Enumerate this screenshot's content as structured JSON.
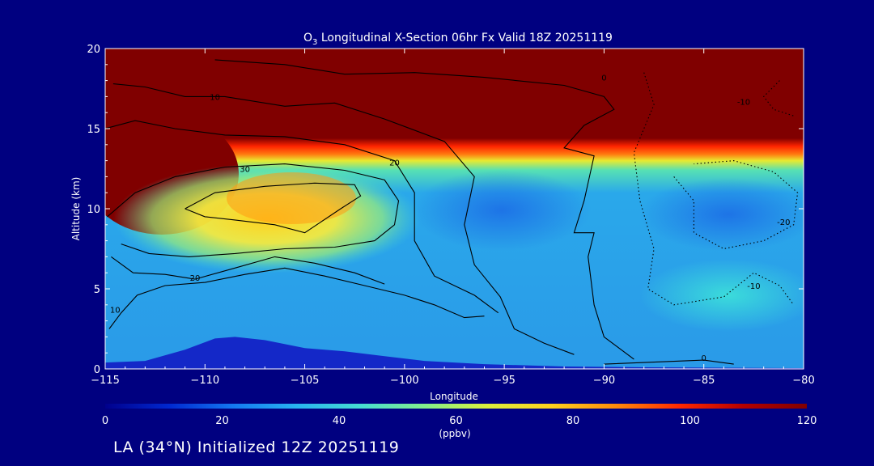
{
  "chart_data": {
    "type": "heatmap",
    "title": "O3 Longitudinal X-Section 06hr  Fx Valid 18Z 20251119",
    "title_parts": {
      "o": "O",
      "sub": "3",
      "rest": " Longitudinal X-Section 06hr  Fx Valid 18Z 20251119"
    },
    "xlabel": "Longitude",
    "ylabel": "Altitude (km)",
    "xlim": [
      -115,
      -80
    ],
    "ylim": [
      0,
      20
    ],
    "xticks": [
      -115,
      -110,
      -105,
      -100,
      -95,
      -90,
      -85,
      -80
    ],
    "xtick_labels": [
      "−115",
      "−110",
      "−105",
      "−100",
      "−95",
      "−90",
      "−85",
      "−80"
    ],
    "yticks": [
      0,
      5,
      10,
      15,
      20
    ],
    "ytick_labels": [
      "0",
      "5",
      "10",
      "15",
      "20"
    ],
    "colorbar": {
      "min": 0,
      "max": 120,
      "ticks": [
        0,
        20,
        40,
        60,
        80,
        100,
        120
      ],
      "tick_labels": [
        "0",
        "20",
        "40",
        "60",
        "80",
        "100",
        "120"
      ],
      "units": "(ppbv)",
      "colors": [
        "#00008c",
        "#0028d0",
        "#1478f0",
        "#28b4f0",
        "#46dcd2",
        "#82f08c",
        "#dcf03c",
        "#ffd21e",
        "#ff8c0a",
        "#ff2800",
        "#b40000",
        "#800000"
      ]
    },
    "field_description": "Ozone mixing ratio: >120 ppbv above ~13-14 km (stratosphere), 30-60 ppbv in troposphere, 70-110 ppbv plume near -110 to -103 at 8-11 km, terrain masked near -108.",
    "terrain": [
      [
        -115,
        0.4
      ],
      [
        -113,
        0.5
      ],
      [
        -111,
        1.2
      ],
      [
        -109.5,
        1.9
      ],
      [
        -108.5,
        2.0
      ],
      [
        -107,
        1.8
      ],
      [
        -105,
        1.3
      ],
      [
        -103,
        1.1
      ],
      [
        -101,
        0.8
      ],
      [
        -99,
        0.5
      ],
      [
        -96,
        0.3
      ],
      [
        -92,
        0.15
      ],
      [
        -88,
        0.1
      ],
      [
        -80,
        0.05
      ]
    ],
    "contours": [
      {
        "label": "10",
        "label_pos": [
          -114.5,
          3.5
        ],
        "dashed": false,
        "points": [
          [
            -114.8,
            2.5
          ],
          [
            -114.2,
            3.5
          ],
          [
            -113.4,
            4.6
          ],
          [
            -112,
            5.2
          ],
          [
            -110,
            5.4
          ],
          [
            -108,
            5.9
          ],
          [
            -106,
            6.3
          ],
          [
            -104,
            5.8
          ],
          [
            -102,
            5.2
          ],
          [
            -100,
            4.6
          ],
          [
            -98.5,
            4.0
          ],
          [
            -97,
            3.2
          ],
          [
            -96,
            3.3
          ]
        ]
      },
      {
        "label": "20",
        "label_pos": [
          -110.5,
          5.5
        ],
        "dashed": false,
        "points": [
          [
            -114.7,
            7.0
          ],
          [
            -113.6,
            6.0
          ],
          [
            -112,
            5.9
          ],
          [
            -110.5,
            5.6
          ],
          [
            -108.5,
            6.3
          ],
          [
            -106.5,
            7.0
          ],
          [
            -104.5,
            6.6
          ],
          [
            -102.5,
            6.0
          ],
          [
            -101,
            5.3
          ]
        ]
      },
      {
        "label": "30",
        "label_pos": [
          -108,
          12.3
        ],
        "dashed": false,
        "points": [
          [
            -114.9,
            9.5
          ],
          [
            -113.5,
            11.0
          ],
          [
            -111.5,
            12.0
          ],
          [
            -109,
            12.6
          ],
          [
            -106,
            12.8
          ],
          [
            -103,
            12.4
          ],
          [
            -101,
            11.8
          ],
          [
            -100.3,
            10.5
          ],
          [
            -100.5,
            9.0
          ],
          [
            -101.5,
            8.0
          ],
          [
            -103.5,
            7.6
          ],
          [
            -106,
            7.5
          ],
          [
            -108.5,
            7.2
          ],
          [
            -110.8,
            7.0
          ],
          [
            -112.8,
            7.2
          ],
          [
            -114.2,
            7.8
          ]
        ]
      },
      {
        "label": "",
        "label_pos": [
          -105,
          9.5
        ],
        "dashed": false,
        "points": [
          [
            -111,
            10.0
          ],
          [
            -109.5,
            11.0
          ],
          [
            -107,
            11.4
          ],
          [
            -104.5,
            11.6
          ],
          [
            -102.5,
            11.5
          ],
          [
            -102.2,
            10.8
          ],
          [
            -103.2,
            10.0
          ],
          [
            -105,
            8.5
          ],
          [
            -106.5,
            9.0
          ],
          [
            -108.5,
            9.3
          ],
          [
            -110,
            9.5
          ],
          [
            -111,
            10.0
          ]
        ]
      },
      {
        "label": "20",
        "label_pos": [
          -100.5,
          12.7
        ],
        "dashed": false,
        "points": [
          [
            -115,
            15.0
          ],
          [
            -113.5,
            15.5
          ],
          [
            -111.5,
            15.0
          ],
          [
            -109,
            14.6
          ],
          [
            -106,
            14.5
          ],
          [
            -103,
            14.0
          ],
          [
            -100.5,
            13.0
          ],
          [
            -99.5,
            11.0
          ],
          [
            -99.5,
            8.0
          ],
          [
            -98.5,
            5.8
          ],
          [
            -96.5,
            4.6
          ],
          [
            -95.3,
            3.5
          ]
        ]
      },
      {
        "label": "10",
        "label_pos": [
          -109.5,
          16.8
        ],
        "dashed": false,
        "points": [
          [
            -114.6,
            17.8
          ],
          [
            -113,
            17.6
          ],
          [
            -111,
            17.0
          ],
          [
            -109,
            17.0
          ],
          [
            -106,
            16.4
          ],
          [
            -103.5,
            16.6
          ],
          [
            -101,
            15.6
          ],
          [
            -98,
            14.2
          ],
          [
            -96.5,
            12.0
          ],
          [
            -97,
            9.0
          ],
          [
            -96.5,
            6.5
          ],
          [
            -95.2,
            4.5
          ],
          [
            -94.5,
            2.5
          ],
          [
            -93,
            1.6
          ],
          [
            -91.5,
            0.9
          ]
        ]
      },
      {
        "label": "0",
        "label_pos": [
          -90,
          18.0
        ],
        "dashed": false,
        "points": [
          [
            -109.5,
            19.3
          ],
          [
            -106,
            19.0
          ],
          [
            -103,
            18.4
          ],
          [
            -99.5,
            18.5
          ],
          [
            -96,
            18.2
          ],
          [
            -92,
            17.7
          ],
          [
            -90,
            17.0
          ],
          [
            -89.5,
            16.2
          ],
          [
            -91,
            15.2
          ],
          [
            -92,
            13.8
          ],
          [
            -90.5,
            13.3
          ],
          [
            -91,
            10.5
          ],
          [
            -91.5,
            8.5
          ],
          [
            -90.5,
            8.5
          ],
          [
            -90.8,
            7.0
          ],
          [
            -90.5,
            4.0
          ],
          [
            -90,
            2.0
          ],
          [
            -88.5,
            0.6
          ]
        ]
      },
      {
        "label": "0",
        "label_pos": [
          -85,
          0.5
        ],
        "dashed": false,
        "points": [
          [
            -90,
            0.3
          ],
          [
            -87,
            0.45
          ],
          [
            -85,
            0.55
          ],
          [
            -83.5,
            0.3
          ]
        ]
      },
      {
        "label": "-10",
        "label_pos": [
          -83,
          16.5
        ],
        "dashed": true,
        "points": [
          [
            -88,
            18.5
          ],
          [
            -87.5,
            16.5
          ],
          [
            -88.5,
            13.5
          ],
          [
            -88.2,
            10.5
          ],
          [
            -87.5,
            7.5
          ],
          [
            -87.8,
            5.0
          ],
          [
            -86.5,
            4.0
          ],
          [
            -84,
            4.5
          ],
          [
            -82.5,
            6.0
          ],
          [
            -81.2,
            5.2
          ],
          [
            -80.5,
            4.0
          ]
        ]
      },
      {
        "label": "-20",
        "label_pos": [
          -81,
          9.0
        ],
        "dashed": true,
        "points": [
          [
            -86.5,
            12.0
          ],
          [
            -85.5,
            10.5
          ],
          [
            -85.5,
            8.5
          ],
          [
            -84,
            7.5
          ],
          [
            -82,
            8.0
          ],
          [
            -80.5,
            9.0
          ],
          [
            -80.3,
            11.0
          ],
          [
            -81.5,
            12.3
          ],
          [
            -83.5,
            13.0
          ],
          [
            -85.5,
            12.8
          ]
        ]
      },
      {
        "label": "-10",
        "label_pos": [
          -82.5,
          5.0
        ],
        "dashed": true,
        "points": [
          [
            -81.2,
            18.0
          ],
          [
            -82,
            17.0
          ],
          [
            -81.5,
            16.2
          ],
          [
            -80.5,
            15.8
          ]
        ]
      }
    ]
  },
  "footer": {
    "location_text": "LA (34°N) Initialized 12Z 20251119"
  }
}
